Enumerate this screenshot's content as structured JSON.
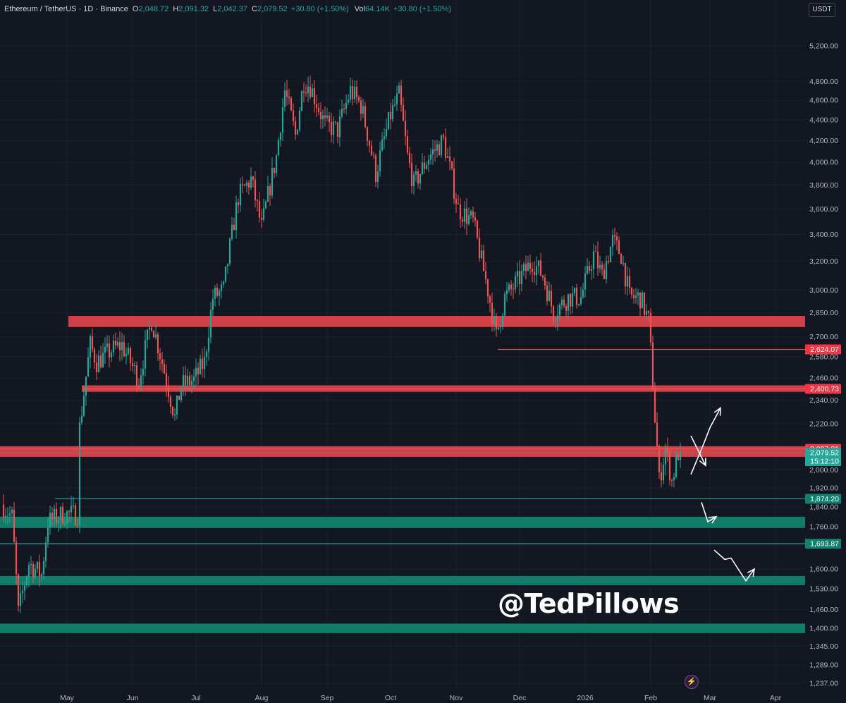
{
  "header": {
    "symbol": "Ethereum / TetherUS · 1D · Binance",
    "o_label": "O",
    "o_value": "2,048.72",
    "h_label": "H",
    "h_value": "2,091.32",
    "l_label": "L",
    "l_value": "2,042.37",
    "c_label": "C",
    "c_value": "2,079.52",
    "change": "+30.80 (+1.50%)",
    "vol_label": "Vol",
    "vol_value": "64.14K",
    "vol_change": "+30.80 (+1.50%)"
  },
  "currency_button": "USDT",
  "watermark": "@TedPillows",
  "colors": {
    "background": "#131722",
    "up": "#26a69a",
    "down": "#ef5350",
    "resistance_zone": "#d9424d",
    "support_zone": "#12826f",
    "arrows": "#ffffff"
  },
  "icons": {
    "bolt": "lightning-icon"
  },
  "chart_data": {
    "type": "candlestick",
    "symbol": "ETH/USDT",
    "interval": "1D",
    "scale": "log",
    "ylim": [
      1237,
      5200
    ],
    "y_ticks": [
      {
        "value": 5200,
        "label": "5,200.00"
      },
      {
        "value": 4800,
        "label": "4,800.00"
      },
      {
        "value": 4600,
        "label": "4,600.00"
      },
      {
        "value": 4400,
        "label": "4,400.00"
      },
      {
        "value": 4200,
        "label": "4,200.00"
      },
      {
        "value": 4000,
        "label": "4,000.00"
      },
      {
        "value": 3800,
        "label": "3,800.00"
      },
      {
        "value": 3600,
        "label": "3,600.00"
      },
      {
        "value": 3400,
        "label": "3,400.00"
      },
      {
        "value": 3200,
        "label": "3,200.00"
      },
      {
        "value": 3000,
        "label": "3,000.00"
      },
      {
        "value": 2850,
        "label": "2,850.00"
      },
      {
        "value": 2700,
        "label": "2,700.00"
      },
      {
        "value": 2580,
        "label": "2,580.00"
      },
      {
        "value": 2460,
        "label": "2,460.00"
      },
      {
        "value": 2340,
        "label": "2,340.00"
      },
      {
        "value": 2220,
        "label": "2,220.00"
      },
      {
        "value": 2000,
        "label": "2,000.00"
      },
      {
        "value": 1920,
        "label": "1,920.00"
      },
      {
        "value": 1840,
        "label": "1,840.00"
      },
      {
        "value": 1760,
        "label": "1,760.00"
      },
      {
        "value": 1600,
        "label": "1,600.00"
      },
      {
        "value": 1530,
        "label": "1,530.00"
      },
      {
        "value": 1460,
        "label": "1,460.00"
      },
      {
        "value": 1400,
        "label": "1,400.00"
      },
      {
        "value": 1345,
        "label": "1,345.00"
      },
      {
        "value": 1289,
        "label": "1,289.00"
      },
      {
        "value": 1237,
        "label": "1,237.00"
      }
    ],
    "x_ticks": [
      {
        "date": "2025-05-01",
        "label": "May"
      },
      {
        "date": "2025-06-01",
        "label": "Jun"
      },
      {
        "date": "2025-07-01",
        "label": "Jul"
      },
      {
        "date": "2025-08-01",
        "label": "Aug"
      },
      {
        "date": "2025-09-01",
        "label": "Sep"
      },
      {
        "date": "2025-10-01",
        "label": "Oct"
      },
      {
        "date": "2025-11-01",
        "label": "Nov"
      },
      {
        "date": "2025-12-01",
        "label": "Dec"
      },
      {
        "date": "2026-01-01",
        "label": "2026"
      },
      {
        "date": "2026-02-01",
        "label": "Feb"
      },
      {
        "date": "2026-03-01",
        "label": "Mar"
      },
      {
        "date": "2026-04-01",
        "label": "Apr"
      }
    ],
    "price_path": [
      [
        "2025-04-01",
        1850
      ],
      [
        "2025-04-06",
        1800
      ],
      [
        "2025-04-09",
        1450
      ],
      [
        "2025-04-14",
        1620
      ],
      [
        "2025-04-20",
        1580
      ],
      [
        "2025-04-23",
        1780
      ],
      [
        "2025-04-30",
        1810
      ],
      [
        "2025-05-07",
        1810
      ],
      [
        "2025-05-08",
        2200
      ],
      [
        "2025-05-13",
        2650
      ],
      [
        "2025-05-16",
        2550
      ],
      [
        "2025-05-23",
        2620
      ],
      [
        "2025-05-28",
        2650
      ],
      [
        "2025-06-05",
        2450
      ],
      [
        "2025-06-11",
        2800
      ],
      [
        "2025-06-16",
        2550
      ],
      [
        "2025-06-22",
        2250
      ],
      [
        "2025-06-25",
        2420
      ],
      [
        "2025-07-01",
        2450
      ],
      [
        "2025-07-06",
        2550
      ],
      [
        "2025-07-10",
        2950
      ],
      [
        "2025-07-15",
        3000
      ],
      [
        "2025-07-22",
        3700
      ],
      [
        "2025-07-28",
        3850
      ],
      [
        "2025-08-02",
        3450
      ],
      [
        "2025-08-09",
        4050
      ],
      [
        "2025-08-13",
        4700
      ],
      [
        "2025-08-18",
        4250
      ],
      [
        "2025-08-22",
        4800
      ],
      [
        "2025-08-25",
        4750
      ],
      [
        "2025-09-01",
        4350
      ],
      [
        "2025-09-07",
        4300
      ],
      [
        "2025-09-13",
        4700
      ],
      [
        "2025-09-18",
        4550
      ],
      [
        "2025-09-25",
        3900
      ],
      [
        "2025-10-02",
        4450
      ],
      [
        "2025-10-06",
        4650
      ],
      [
        "2025-10-10",
        4050
      ],
      [
        "2025-10-13",
        3800
      ],
      [
        "2025-10-20",
        4050
      ],
      [
        "2025-10-27",
        4200
      ],
      [
        "2025-11-03",
        3600
      ],
      [
        "2025-11-10",
        3500
      ],
      [
        "2025-11-14",
        3200
      ],
      [
        "2025-11-17",
        3000
      ],
      [
        "2025-11-21",
        2700
      ],
      [
        "2025-11-25",
        2950
      ],
      [
        "2025-11-28",
        3000
      ],
      [
        "2025-12-03",
        3100
      ],
      [
        "2025-12-08",
        3200
      ],
      [
        "2025-12-13",
        3100
      ],
      [
        "2025-12-18",
        2850
      ],
      [
        "2025-12-25",
        2950
      ],
      [
        "2025-12-31",
        2950
      ],
      [
        "2026-01-06",
        3250
      ],
      [
        "2026-01-10",
        3100
      ],
      [
        "2026-01-15",
        3350
      ],
      [
        "2026-01-19",
        3250
      ],
      [
        "2026-01-23",
        2950
      ],
      [
        "2026-01-28",
        2950
      ],
      [
        "2026-02-01",
        2800
      ],
      [
        "2026-02-04",
        2250
      ],
      [
        "2026-02-06",
        1950
      ],
      [
        "2026-02-09",
        2100
      ],
      [
        "2026-02-12",
        1950
      ],
      [
        "2026-02-15",
        2079.52
      ]
    ],
    "resistance_zones": [
      [
        2760,
        2830
      ],
      [
        2385,
        2420
      ],
      [
        2060,
        2110
      ]
    ],
    "support_zones": [
      [
        1755,
        1800
      ],
      [
        1543,
        1575
      ],
      [
        1385,
        1415
      ]
    ],
    "levels": [
      {
        "value": 2624.07,
        "label": "2,624.07",
        "type": "resistance"
      },
      {
        "value": 2400.73,
        "label": "2,400.73",
        "type": "resistance"
      },
      {
        "value": 2097.31,
        "label": "2,097.31",
        "type": "resistance"
      },
      {
        "value": 1874.2,
        "label": "1,874.20",
        "type": "support"
      },
      {
        "value": 1693.87,
        "label": "1,693.87",
        "type": "support"
      }
    ],
    "last_price": {
      "value": 2079.52,
      "label": "2,079.52",
      "countdown": "15:12:10"
    },
    "projections": [
      [
        [
          "2026-02-20",
          1980
        ],
        [
          "2026-02-26",
          2120
        ],
        [
          "2026-03-01",
          2200
        ],
        [
          "2026-03-06",
          2300
        ]
      ],
      [
        [
          "2026-02-20",
          2160
        ],
        [
          "2026-02-27",
          2020
        ]
      ],
      [
        [
          "2026-02-25",
          1860
        ],
        [
          "2026-02-28",
          1780
        ],
        [
          "2026-03-04",
          1800
        ]
      ],
      [
        [
          "2026-03-03",
          1670
        ],
        [
          "2026-03-08",
          1635
        ],
        [
          "2026-03-11",
          1640
        ],
        [
          "2026-03-18",
          1558
        ],
        [
          "2026-03-22",
          1600
        ]
      ]
    ]
  }
}
